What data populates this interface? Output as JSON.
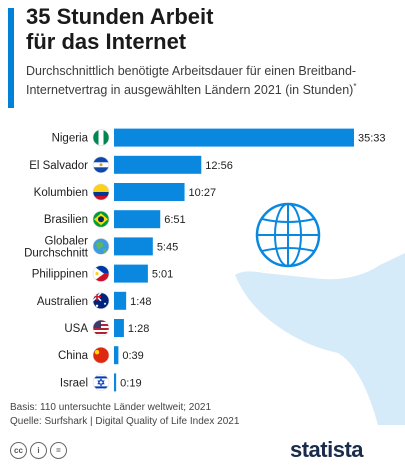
{
  "header": {
    "title_line1": "35 Stunden Arbeit",
    "title_line2": "für das Internet",
    "subtitle_line1": "Durchschnittlich benötigte Arbeitsdauer für einen Breitband-",
    "subtitle_line2": "Internetvertrag in ausgewählten Ländern 2021 (in Stunden)",
    "subtitle_mark": "*"
  },
  "chart_data": {
    "type": "bar",
    "orientation": "horizontal",
    "unit": "hours",
    "categories": [
      "Nigeria",
      "El Salvador",
      "Kolumbien",
      "Brasilien",
      "Globaler Durchschnitt",
      "Philippinen",
      "Australien",
      "USA",
      "China",
      "Israel"
    ],
    "category_lines": [
      [
        "Nigeria"
      ],
      [
        "El Salvador"
      ],
      [
        "Kolumbien"
      ],
      [
        "Brasilien"
      ],
      [
        "Globaler",
        "Durchschnitt"
      ],
      [
        "Philippinen"
      ],
      [
        "Australien"
      ],
      [
        "USA"
      ],
      [
        "China"
      ],
      [
        "Israel"
      ]
    ],
    "value_labels": [
      "35:33",
      "12:56",
      "10:27",
      "6:51",
      "5:45",
      "5:01",
      "1:48",
      "1:28",
      "0:39",
      "0:19"
    ],
    "values": [
      35.55,
      12.93,
      10.45,
      6.85,
      5.75,
      5.02,
      1.8,
      1.47,
      0.65,
      0.32
    ],
    "flags": [
      "nigeria-flag-icon",
      "el-salvador-flag-icon",
      "colombia-flag-icon",
      "brazil-flag-icon",
      "globe-icon",
      "philippines-flag-icon",
      "australia-flag-icon",
      "usa-flag-icon",
      "china-flag-icon",
      "israel-flag-icon"
    ],
    "bar_color": "#0a88e0"
  },
  "footer": {
    "note": "Basis: 110 untersuchte Länder weltweit; 2021",
    "source": "Quelle: Surfshark | Digital Quality of Life Index 2021"
  },
  "license_icons": [
    "cc",
    "i",
    "="
  ],
  "brand": "statista",
  "colors": {
    "accent": "#0082d8",
    "bar": "#0a88e0",
    "decor": "#d6ebf9"
  }
}
